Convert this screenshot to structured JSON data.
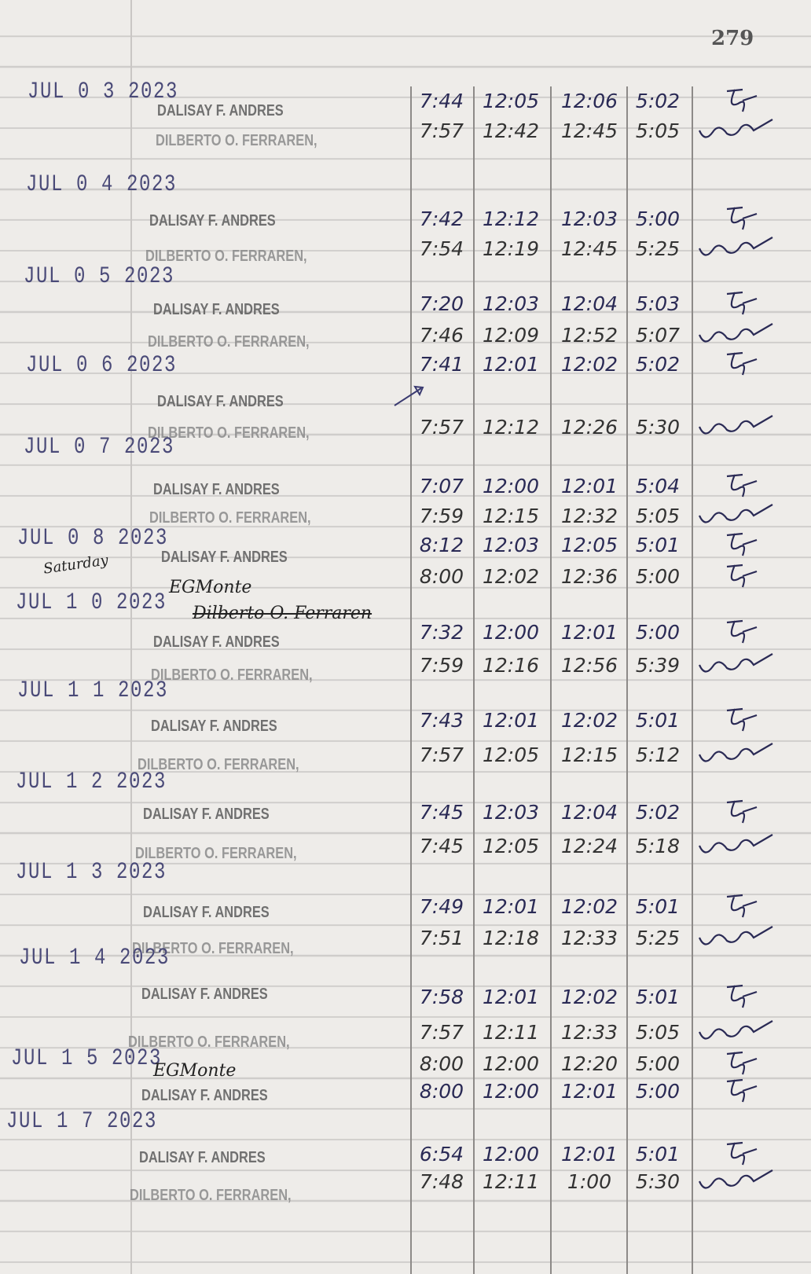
{
  "page_number": "279",
  "columns_note": [
    "time_in_am",
    "time_out_am",
    "time_in_pm",
    "time_out_pm",
    "signature"
  ],
  "entries": [
    {
      "date": "JUL 0 3 2023",
      "rows": [
        {
          "name": "DALISAY F. ANDRES",
          "times": [
            "7:44",
            "12:05",
            "12:06",
            "5:02"
          ]
        },
        {
          "name": "DILBERTO O. FERRAREN,",
          "times": [
            "7:57",
            "12:42",
            "12:45",
            "5:05"
          ]
        }
      ]
    },
    {
      "date": "JUL 0 4 2023",
      "rows": [
        {
          "name": "DALISAY F. ANDRES",
          "times": [
            "7:42",
            "12:12",
            "12:03",
            "5:00"
          ]
        },
        {
          "name": "DILBERTO O. FERRAREN,",
          "times": [
            "7:54",
            "12:19",
            "12:45",
            "5:25"
          ]
        }
      ]
    },
    {
      "date": "JUL 0 5 2023",
      "rows": [
        {
          "name": "DALISAY F. ANDRES",
          "times": [
            "7:20",
            "12:03",
            "12:04",
            "5:03"
          ]
        },
        {
          "name": "DILBERTO O. FERRAREN,",
          "times": [
            "7:46",
            "12:09",
            "12:52",
            "5:07"
          ]
        }
      ]
    },
    {
      "date": "JUL 0 6 2023",
      "rows": [
        {
          "name": "DALISAY F. ANDRES",
          "times": [
            "7:41",
            "12:01",
            "12:02",
            "5:02"
          ]
        },
        {
          "name": "DILBERTO O. FERRAREN,",
          "times": [
            "7:57",
            "12:12",
            "12:26",
            "5:30"
          ]
        }
      ]
    },
    {
      "date": "JUL 0 7 2023",
      "rows": [
        {
          "name": "DALISAY F. ANDRES",
          "times": [
            "7:07",
            "12:00",
            "12:01",
            "5:04"
          ]
        },
        {
          "name": "DILBERTO O. FERRAREN,",
          "times": [
            "7:59",
            "12:15",
            "12:32",
            "5:05"
          ]
        }
      ]
    },
    {
      "date": "JUL 0 8 2023",
      "note": "Saturday",
      "rows": [
        {
          "name": "DALISAY F. ANDRES",
          "times": [
            "8:12",
            "12:03",
            "12:05",
            "5:01"
          ]
        },
        {
          "name": "EGMonte",
          "handwritten": true,
          "times": [
            "8:00",
            "12:02",
            "12:36",
            "5:00"
          ]
        },
        {
          "name": "Dilberto O. Ferraren",
          "handwritten": true,
          "struck": true,
          "times": []
        }
      ]
    },
    {
      "date": "JUL 1 0 2023",
      "rows": [
        {
          "name": "DALISAY F. ANDRES",
          "times": [
            "7:32",
            "12:00",
            "12:01",
            "5:00"
          ]
        },
        {
          "name": "DILBERTO O. FERRAREN,",
          "times": [
            "7:59",
            "12:16",
            "12:56",
            "5:39"
          ]
        }
      ]
    },
    {
      "date": "JUL 1 1 2023",
      "rows": [
        {
          "name": "DALISAY F. ANDRES",
          "times": [
            "7:43",
            "12:01",
            "12:02",
            "5:01"
          ]
        },
        {
          "name": "DILBERTO O. FERRAREN,",
          "times": [
            "7:57",
            "12:05",
            "12:15",
            "5:12"
          ]
        }
      ]
    },
    {
      "date": "JUL 1 2 2023",
      "rows": [
        {
          "name": "DALISAY F. ANDRES",
          "times": [
            "7:45",
            "12:03",
            "12:04",
            "5:02"
          ]
        },
        {
          "name": "DILBERTO O. FERRAREN,",
          "times": [
            "7:45",
            "12:05",
            "12:24",
            "5:18"
          ]
        }
      ]
    },
    {
      "date": "JUL 1 3 2023",
      "rows": [
        {
          "name": "DALISAY F. ANDRES",
          "times": [
            "7:49",
            "12:01",
            "12:02",
            "5:01"
          ]
        },
        {
          "name": "DILBERTO O. FERRAREN,",
          "times": [
            "7:51",
            "12:18",
            "12:33",
            "5:25"
          ]
        }
      ]
    },
    {
      "date": "JUL 1 4 2023",
      "rows": [
        {
          "name": "DALISAY F. ANDRES",
          "times": [
            "7:58",
            "12:01",
            "12:02",
            "5:01"
          ]
        },
        {
          "name": "DILBERTO O. FERRAREN,",
          "times": [
            "7:57",
            "12:11",
            "12:33",
            "5:05"
          ]
        }
      ]
    },
    {
      "date": "JUL 1 5 2023",
      "rows": [
        {
          "name": "EGMonte",
          "handwritten": true,
          "times": [
            "8:00",
            "12:00",
            "12:20",
            "5:00"
          ]
        },
        {
          "name": "DALISAY F. ANDRES",
          "times": [
            "8:00",
            "12:00",
            "12:01",
            "5:00"
          ]
        }
      ]
    },
    {
      "date": "JUL 1 7 2023",
      "rows": [
        {
          "name": "DALISAY F. ANDRES",
          "times": [
            "6:54",
            "12:00",
            "12:01",
            "5:01"
          ]
        },
        {
          "name": "DILBERTO O. FERRAREN,",
          "times": [
            "7:48",
            "12:11",
            "1:00",
            "5:30"
          ]
        }
      ]
    }
  ],
  "colors": {
    "stamp_ink": "#4a4a78",
    "pen_blue": "#2a2a55",
    "pencil": "#333333",
    "paper": "#eeece9"
  }
}
